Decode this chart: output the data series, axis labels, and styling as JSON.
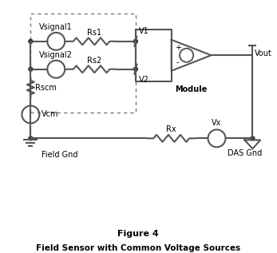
{
  "title": "Figure 4",
  "subtitle": "Field Sensor with Common Voltage Sources",
  "labels": {
    "vsignal1": "Vsignal1",
    "vsignal2": "Vsignal2",
    "rs1": "Rs1",
    "rs2": "Rs2",
    "rscm": "Rscm",
    "vcm": "Vcm",
    "v1": "V1",
    "v2": "V2",
    "vout": "Vout",
    "module": "Module",
    "rx": "Rx",
    "vx": "Vx",
    "field_gnd": "Field Gnd",
    "das_gnd": "DAS Gnd"
  },
  "colors": {
    "line": "#555555",
    "background": "#ffffff",
    "text": "#000000"
  },
  "line_width": 1.5,
  "figsize": [
    3.47,
    3.17
  ],
  "dpi": 100
}
